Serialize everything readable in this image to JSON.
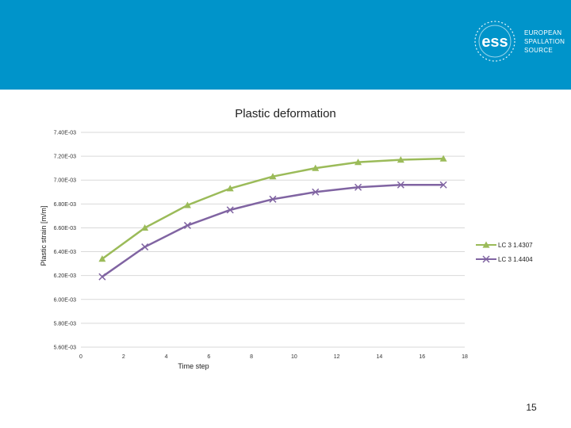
{
  "slide": {
    "logo_lines": [
      "EUROPEAN",
      "SPALLATION",
      "SOURCE"
    ],
    "logo_mark": "ess",
    "page_number": "15",
    "banner_color": "#0094ca"
  },
  "chart_data": {
    "type": "line",
    "title": "Plastic deformation",
    "xlabel": "Time step",
    "ylabel": "Plastic strain [m/m]",
    "xlim": [
      0,
      18
    ],
    "ylim": [
      0.0056,
      0.0074
    ],
    "x_ticks": [
      0,
      2,
      4,
      6,
      8,
      10,
      12,
      14,
      16,
      18
    ],
    "x_tick_labels": [
      "0",
      "2",
      "4",
      "6",
      "8",
      "10",
      "12",
      "14",
      "16",
      "18"
    ],
    "y_ticks": [
      0.0056,
      0.0058,
      0.006,
      0.0062,
      0.0064,
      0.0066,
      0.0068,
      0.007,
      0.0072,
      0.0074
    ],
    "y_tick_labels": [
      "5.60E-03",
      "5.80E-03",
      "6.00E-03",
      "6.20E-03",
      "6.40E-03",
      "6.60E-03",
      "6.80E-03",
      "7.00E-03",
      "7.20E-03",
      "7.40E-03"
    ],
    "grid": "horizontal",
    "legend_position": "right",
    "series": [
      {
        "name": "LC 3 1.4307",
        "color": "#9bbb59",
        "marker": "triangle",
        "x": [
          1,
          3,
          5,
          7,
          9,
          11,
          13,
          15,
          17
        ],
        "y": [
          0.00634,
          0.0066,
          0.00679,
          0.00693,
          0.00703,
          0.0071,
          0.00715,
          0.00717,
          0.00718
        ]
      },
      {
        "name": "LC 3 1.4404",
        "color": "#8064a2",
        "marker": "x",
        "x": [
          1,
          3,
          5,
          7,
          9,
          11,
          13,
          15,
          17
        ],
        "y": [
          0.00619,
          0.00644,
          0.00662,
          0.00675,
          0.00684,
          0.0069,
          0.00694,
          0.00696,
          0.00696
        ]
      }
    ]
  }
}
